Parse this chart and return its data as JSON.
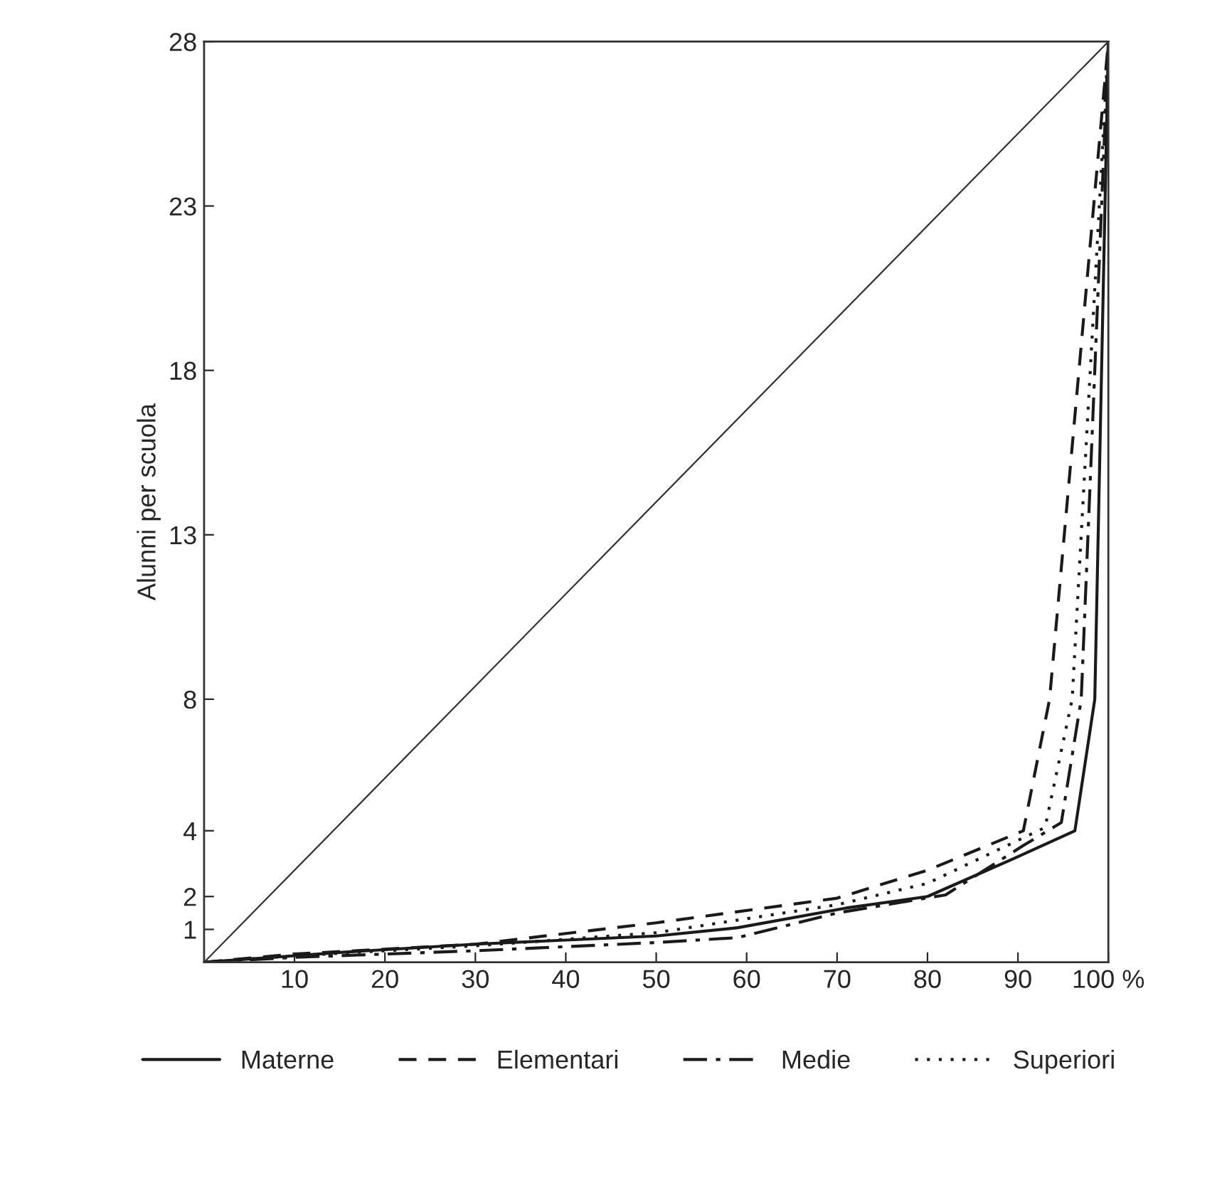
{
  "chart_data": {
    "type": "line",
    "ylabel": "Alunni per scuola",
    "xlim": [
      0,
      100
    ],
    "ylim": [
      0,
      28
    ],
    "xticks": [
      10,
      20,
      30,
      40,
      50,
      60,
      70,
      80,
      90,
      {
        "value": 100,
        "label": "100 %"
      }
    ],
    "yticks": [
      1,
      2,
      4,
      8,
      13,
      18,
      23,
      28
    ],
    "grid": false,
    "legend": "bottom",
    "marker": "none",
    "series": [
      {
        "name": "Materne",
        "color": "#1a1a1a",
        "line_style": "solid",
        "x": [
          0,
          10,
          15,
          30,
          50,
          59,
          71,
          80,
          89.5,
          96.3,
          98.5,
          100
        ],
        "values": [
          0,
          0.2,
          0.3,
          0.55,
          0.8,
          1.05,
          1.65,
          2.0,
          3.15,
          4.0,
          8,
          28
        ]
      },
      {
        "name": "Elementari",
        "color": "#1a1a1a",
        "line_style": "dashed",
        "x": [
          0,
          10,
          30,
          50,
          70,
          80,
          90.6,
          93.5,
          100
        ],
        "values": [
          0,
          0.25,
          0.55,
          1.2,
          1.95,
          2.8,
          4.0,
          8,
          28
        ]
      },
      {
        "name": "Medie",
        "color": "#1a1a1a",
        "line_style": "dashdot",
        "x": [
          0,
          10,
          30,
          50,
          59,
          70,
          82,
          90.6,
          94.8,
          97,
          100
        ],
        "values": [
          0,
          0.15,
          0.35,
          0.6,
          0.75,
          1.5,
          2.05,
          3.55,
          4.25,
          8,
          28
        ]
      },
      {
        "name": "Superiori",
        "color": "#1a1a1a",
        "line_style": "dotted",
        "x": [
          0,
          10,
          30,
          50,
          70,
          80,
          93,
          96,
          100
        ],
        "values": [
          0,
          0.2,
          0.5,
          0.9,
          1.75,
          2.4,
          4.1,
          8,
          28
        ]
      },
      {
        "color": "#333333",
        "line_style": "solid",
        "x": [
          0,
          100
        ],
        "values": [
          0,
          28
        ]
      }
    ]
  }
}
